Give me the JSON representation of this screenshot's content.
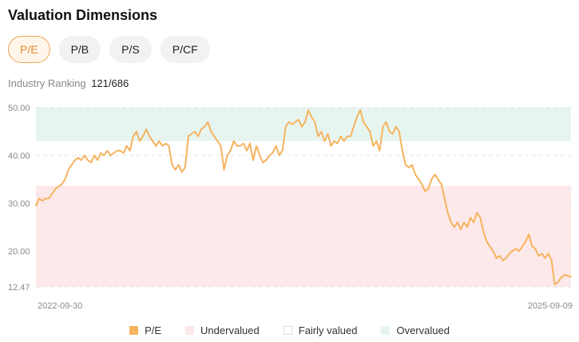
{
  "header": {
    "title": "Valuation Dimensions"
  },
  "tabs": [
    {
      "label": "P/E",
      "active": true
    },
    {
      "label": "P/B",
      "active": false
    },
    {
      "label": "P/S",
      "active": false
    },
    {
      "label": "P/CF",
      "active": false
    }
  ],
  "ranking": {
    "label": "Industry Ranking",
    "value": "121/686"
  },
  "colors": {
    "line": "#f5b35e",
    "undervalued": "#fde9e9",
    "fairly": "#ffffff",
    "overvalued": "#e7f5f1",
    "grid": "#e3e3e3"
  },
  "chart_data": {
    "type": "line",
    "x_start": "2022-09-30",
    "x_end": "2025-09-09",
    "ylim": [
      12.47,
      50.0
    ],
    "y_ticks": [
      "50.00",
      "40.00",
      "30.00",
      "20.00",
      "12.47"
    ],
    "x_tick_labels": [
      "2022-09-30",
      "2025-09-09"
    ],
    "grid": true,
    "legend_position": "bottom",
    "bands": [
      {
        "name": "Undervalued",
        "from": 12.47,
        "to": 33.7
      },
      {
        "name": "Fairly valued",
        "from": 33.7,
        "to": 43.0
      },
      {
        "name": "Overvalued",
        "from": 43.0,
        "to": 50.0
      }
    ],
    "series": [
      {
        "name": "P/E",
        "values": [
          29.5,
          31,
          30.5,
          31,
          31,
          32,
          33,
          33.5,
          34,
          35,
          37,
          38,
          39,
          39.5,
          39,
          40,
          39,
          38.5,
          40,
          39,
          40.5,
          40,
          41,
          40,
          40.5,
          41,
          41,
          40.5,
          42,
          41,
          44,
          45,
          43,
          44,
          45.5,
          44,
          43,
          42,
          43,
          42,
          42.5,
          42,
          38,
          37,
          38,
          36.5,
          37.5,
          44,
          44.5,
          45,
          44,
          45.5,
          46,
          47,
          45,
          44,
          43,
          42,
          37,
          40,
          41,
          43,
          42,
          42,
          42.5,
          41,
          42.5,
          39,
          42,
          40,
          38.5,
          39,
          40,
          40.5,
          42,
          40,
          41,
          46,
          47,
          46.5,
          47,
          47.5,
          46,
          47,
          49.5,
          48,
          47,
          44,
          45,
          43,
          44.5,
          42,
          43,
          42.5,
          44,
          43,
          44,
          44,
          46,
          48,
          49.5,
          47,
          46,
          45,
          42,
          43,
          41,
          46,
          47,
          45,
          44.5,
          46,
          45,
          41,
          38,
          37.5,
          38,
          36,
          35,
          34,
          32.5,
          33,
          35,
          36,
          35,
          34,
          31,
          28,
          26,
          25,
          26,
          24.5,
          26,
          25,
          27,
          26,
          28,
          27,
          24,
          22,
          21,
          20,
          18.5,
          19,
          18,
          18.5,
          19.5,
          20,
          20.5,
          20,
          21,
          22,
          23.5,
          21,
          20.5,
          19,
          19.5,
          18.5,
          19.5,
          18,
          13,
          13.5,
          14.5,
          15,
          14.8,
          14.6
        ]
      }
    ]
  },
  "legend": {
    "pe": "P/E",
    "undervalued": "Undervalued",
    "fairly": "Fairly valued",
    "overvalued": "Overvalued"
  }
}
